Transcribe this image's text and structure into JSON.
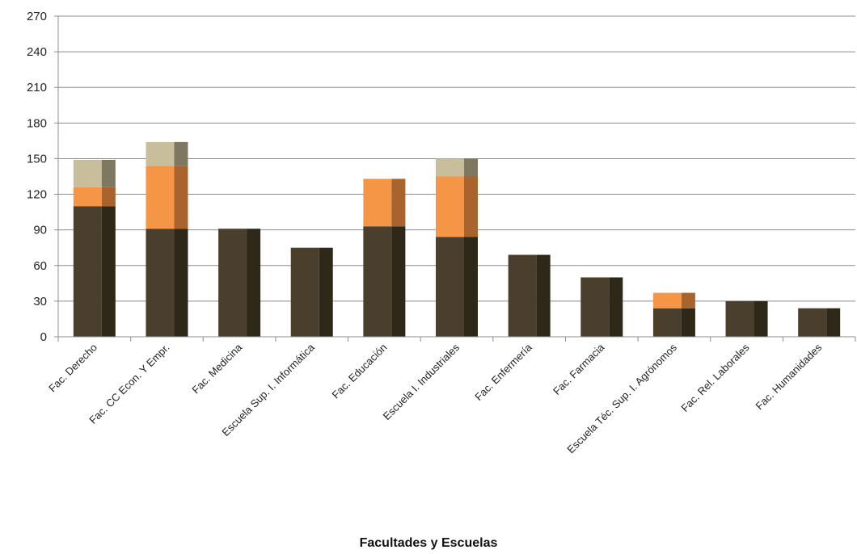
{
  "chart_data": {
    "type": "bar",
    "stacked": true,
    "style": "3d-columns",
    "title": "",
    "xlabel": "Facultades  y Escuelas",
    "ylabel": "",
    "ylim": [
      0,
      270
    ],
    "yticks": [
      0,
      30,
      60,
      90,
      120,
      150,
      180,
      210,
      240,
      270
    ],
    "grid": true,
    "legend": "none",
    "categories": [
      "Fac. Derecho",
      "Fac. CC Econ. Y Empr.",
      "Fac. Medicina",
      "Escuela Sup. I. Informática",
      "Fac. Educación",
      "Escuela I. Industriales",
      "Fac. Enfermería",
      "Fac. Farmacia",
      "Escuela Téc. Sup. I. Agrónomos",
      "Fac. Rel. Laborales",
      "Fac. Humanidades"
    ],
    "series": [
      {
        "color": "#4a3f2c",
        "side_color": "#2e2818",
        "values": [
          110,
          91,
          91,
          75,
          93,
          84,
          69,
          50,
          24,
          30,
          24
        ]
      },
      {
        "color": "#f59646",
        "side_color": "#a8642c",
        "values": [
          16,
          53,
          0,
          0,
          40,
          51,
          0,
          0,
          13,
          0,
          0
        ]
      },
      {
        "color": "#c8be9b",
        "side_color": "#7e7860",
        "values": [
          23,
          20,
          0,
          0,
          0,
          15,
          0,
          0,
          0,
          0,
          0
        ]
      }
    ]
  }
}
